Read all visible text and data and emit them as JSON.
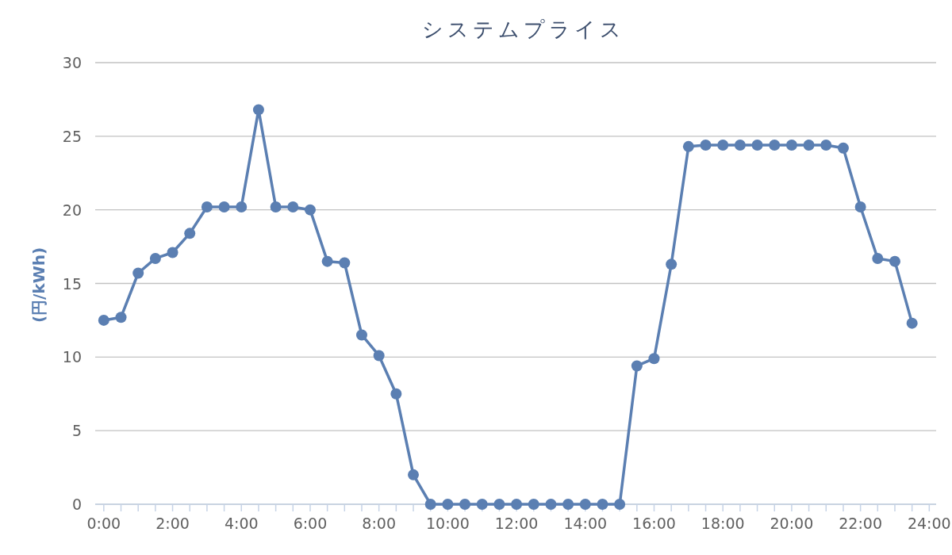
{
  "chart_data": {
    "type": "line",
    "title": "システムプライス",
    "ylabel": "(円/kWh)",
    "x": [
      0,
      0.5,
      1,
      1.5,
      2,
      2.5,
      3,
      3.5,
      4,
      4.5,
      5,
      5.5,
      6,
      6.5,
      7,
      7.5,
      8,
      8.5,
      9,
      9.5,
      10,
      10.5,
      11,
      11.5,
      12,
      12.5,
      13,
      13.5,
      14,
      14.5,
      15,
      15.5,
      16,
      16.5,
      17,
      17.5,
      18,
      18.5,
      19,
      19.5,
      20,
      20.5,
      21,
      21.5,
      22,
      22.5,
      23,
      23.5
    ],
    "series": [
      {
        "color": "#5b7fb2",
        "values": [
          12.5,
          12.7,
          15.7,
          16.7,
          17.1,
          18.4,
          20.2,
          20.2,
          20.2,
          26.8,
          20.2,
          20.2,
          20.0,
          16.5,
          16.4,
          11.5,
          10.1,
          7.5,
          2.0,
          0,
          0,
          0,
          0,
          0,
          0,
          0,
          0,
          0,
          0,
          0,
          0,
          9.4,
          9.9,
          16.3,
          24.3,
          24.4,
          24.4,
          24.4,
          24.4,
          24.4,
          24.4,
          24.4,
          24.4,
          24.2,
          20.2,
          16.7,
          16.5,
          12.3
        ]
      }
    ],
    "xlim": [
      -0.25,
      24.2
    ],
    "ylim": [
      0,
      30
    ],
    "yticks": [
      0,
      5,
      10,
      15,
      20,
      25,
      30
    ],
    "xticks": [
      {
        "value": 0,
        "label": "0:00"
      },
      {
        "value": 0.5,
        "label": null
      },
      {
        "value": 1,
        "label": null
      },
      {
        "value": 1.5,
        "label": null
      },
      {
        "value": 2,
        "label": "2:00"
      },
      {
        "value": 2.5,
        "label": null
      },
      {
        "value": 3,
        "label": null
      },
      {
        "value": 3.5,
        "label": null
      },
      {
        "value": 4,
        "label": "4:00"
      },
      {
        "value": 4.5,
        "label": null
      },
      {
        "value": 5,
        "label": null
      },
      {
        "value": 5.5,
        "label": null
      },
      {
        "value": 6,
        "label": "6:00"
      },
      {
        "value": 6.5,
        "label": null
      },
      {
        "value": 7,
        "label": null
      },
      {
        "value": 7.5,
        "label": null
      },
      {
        "value": 8,
        "label": "8:00"
      },
      {
        "value": 8.5,
        "label": null
      },
      {
        "value": 9,
        "label": null
      },
      {
        "value": 9.5,
        "label": null
      },
      {
        "value": 10,
        "label": "10:00"
      },
      {
        "value": 10.5,
        "label": null
      },
      {
        "value": 11,
        "label": null
      },
      {
        "value": 11.5,
        "label": null
      },
      {
        "value": 12,
        "label": "12:00"
      },
      {
        "value": 12.5,
        "label": null
      },
      {
        "value": 13,
        "label": null
      },
      {
        "value": 13.5,
        "label": null
      },
      {
        "value": 14,
        "label": "14:00"
      },
      {
        "value": 14.5,
        "label": null
      },
      {
        "value": 15,
        "label": null
      },
      {
        "value": 15.5,
        "label": null
      },
      {
        "value": 16,
        "label": "16:00"
      },
      {
        "value": 16.5,
        "label": null
      },
      {
        "value": 17,
        "label": null
      },
      {
        "value": 17.5,
        "label": null
      },
      {
        "value": 18,
        "label": "18:00"
      },
      {
        "value": 18.5,
        "label": null
      },
      {
        "value": 19,
        "label": null
      },
      {
        "value": 19.5,
        "label": null
      },
      {
        "value": 20,
        "label": "20:00"
      },
      {
        "value": 20.5,
        "label": null
      },
      {
        "value": 21,
        "label": null
      },
      {
        "value": 21.5,
        "label": null
      },
      {
        "value": 22,
        "label": "22:00"
      },
      {
        "value": 22.5,
        "label": null
      },
      {
        "value": 23,
        "label": null
      },
      {
        "value": 23.5,
        "label": null
      },
      {
        "value": 24,
        "label": "24:00"
      }
    ],
    "grid": "y",
    "marker": "circle",
    "line_style": "solid"
  }
}
